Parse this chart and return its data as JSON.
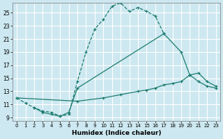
{
  "xlabel": "Humidex (Indice chaleur)",
  "bg_color": "#cde8f0",
  "grid_color": "#b8d4dc",
  "line_color": "#1a7a6e",
  "xlim": [
    -0.5,
    23.5
  ],
  "ylim": [
    8.5,
    26.5
  ],
  "xticks": [
    0,
    1,
    2,
    3,
    4,
    5,
    6,
    7,
    8,
    9,
    10,
    11,
    12,
    13,
    14,
    15,
    16,
    17,
    18,
    19,
    20,
    21,
    22,
    23
  ],
  "yticks": [
    9,
    11,
    13,
    15,
    17,
    19,
    21,
    23,
    25
  ],
  "curves": [
    {
      "x": [
        0,
        1,
        2,
        3,
        4,
        5,
        6,
        7,
        8,
        9,
        10,
        11,
        12,
        13,
        14,
        15,
        16,
        17
      ],
      "y": [
        12.0,
        11.2,
        10.5,
        10.0,
        9.8,
        9.2,
        9.5,
        14.5,
        19.0,
        22.5,
        24.0,
        26.0,
        26.5,
        25.2,
        25.8,
        25.2,
        24.5,
        21.8
      ],
      "linestyle": "--"
    },
    {
      "x": [
        2,
        3,
        4,
        5,
        6,
        7,
        17,
        19,
        20,
        21,
        22,
        23
      ],
      "y": [
        10.5,
        9.8,
        9.5,
        9.2,
        9.8,
        13.5,
        21.8,
        19.0,
        15.5,
        14.5,
        13.8,
        13.5
      ],
      "linestyle": "-"
    },
    {
      "x": [
        0,
        7,
        10,
        12,
        14,
        15,
        16,
        17,
        18,
        19,
        20,
        21,
        22,
        23
      ],
      "y": [
        12.0,
        11.5,
        12.0,
        12.5,
        13.0,
        13.2,
        13.5,
        14.0,
        14.2,
        14.5,
        15.5,
        15.8,
        14.5,
        13.8
      ],
      "linestyle": "-"
    }
  ]
}
